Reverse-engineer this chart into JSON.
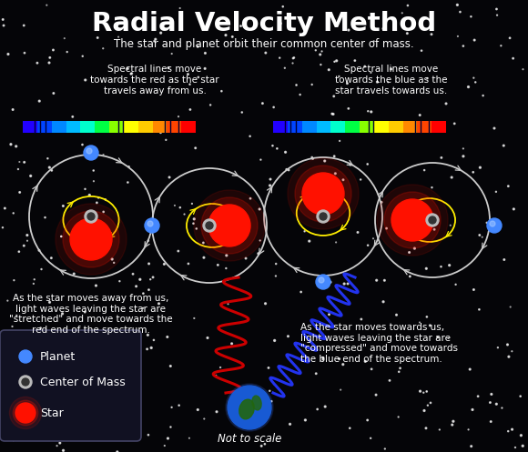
{
  "title": "Radial Velocity Method",
  "subtitle": "The star and planet orbit their common center of mass.",
  "text_red_shift": "Spectral lines move\ntowards the red as the star\ntravels away from us.",
  "text_blue_shift": "Spectral lines move\ntowards the blue as the\nstar travels towards us.",
  "text_away": "As the star moves away from us,\nlight waves leaving the star are\n\"stretched\" and move towards the\nred end of the spectrum.",
  "text_towards": "As the star moves towards us,\nlight waves leaving the star are\n\"compressed\" and move towards\nthe blue end of the spectrum.",
  "text_scale": "Not to scale",
  "legend_planet": "Planet",
  "legend_com": "Center of Mass",
  "legend_star": "Star",
  "bg_color": "#050508",
  "text_color": "#ffffff",
  "star_color": "#ff1100",
  "planet_color": "#4488ff",
  "com_color": "#bbbbbb",
  "orbit_color": "#cccccc",
  "yellow_orbit_color": "#ffee00",
  "red_wave_color": "#cc0000",
  "blue_wave_color": "#2233ee",
  "legend_box_color": "#111122"
}
